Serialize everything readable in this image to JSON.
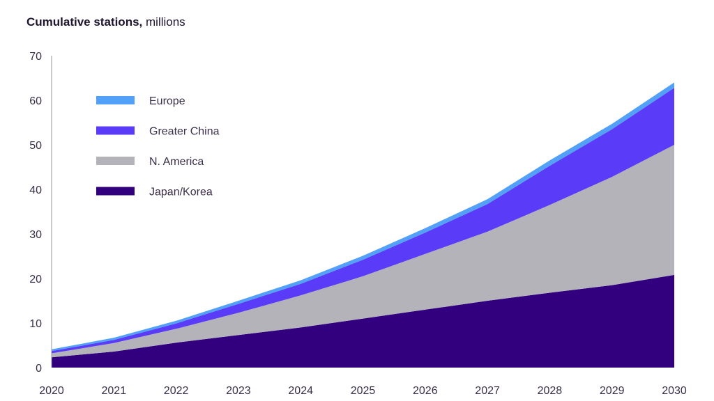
{
  "chart_data": {
    "type": "area",
    "stacked": true,
    "title": "Cumulative stations,",
    "title_unit": "millions",
    "x": [
      "2020",
      "2021",
      "2022",
      "2023",
      "2024",
      "2025",
      "2026",
      "2027",
      "2028",
      "2029",
      "2030"
    ],
    "ylim": [
      0,
      70
    ],
    "yticks": [
      "0",
      "10",
      "20",
      "30",
      "40",
      "50",
      "60",
      "70"
    ],
    "grid": false,
    "legend_position": "top-left",
    "series": [
      {
        "name": "Japan/Korea",
        "color": "#32007f",
        "values": [
          2.3,
          3.6,
          5.6,
          7.3,
          9.0,
          11.0,
          13.0,
          15.0,
          16.8,
          18.5,
          20.8
        ]
      },
      {
        "name": "N. America",
        "color": "#b4b3b9",
        "values": [
          0.9,
          1.9,
          3.1,
          5.0,
          7.2,
          9.5,
          12.5,
          15.5,
          19.7,
          24.3,
          29.2
        ]
      },
      {
        "name": "Greater China",
        "color": "#5a3cf8",
        "values": [
          0.5,
          0.7,
          1.2,
          2.0,
          2.6,
          3.7,
          4.8,
          6.2,
          8.8,
          10.7,
          12.8
        ]
      },
      {
        "name": "Europe",
        "color": "#52a0f8",
        "values": [
          0.4,
          0.5,
          0.6,
          0.7,
          0.8,
          0.9,
          1.0,
          1.1,
          1.2,
          1.2,
          1.2
        ]
      }
    ]
  }
}
